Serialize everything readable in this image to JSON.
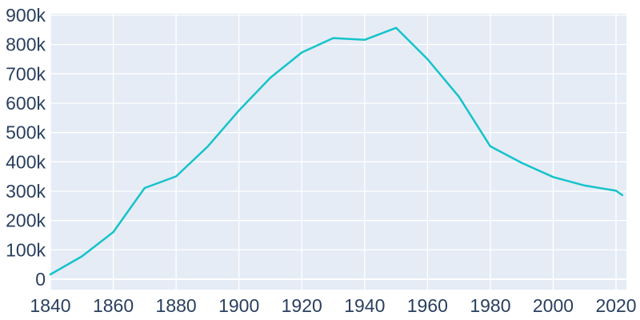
{
  "page": {
    "background_color": "#ffffff"
  },
  "chart_data": {
    "type": "line",
    "title": "",
    "xlabel": "",
    "ylabel": "",
    "legend": "none",
    "grid": true,
    "plot_bg_color": "#e5ecf6",
    "grid_color": "#ffffff",
    "tick_label_color": "#2a3f5f",
    "xlim": [
      1840,
      2023.3
    ],
    "ylim": [
      -35400,
      905400
    ],
    "x_ticks": {
      "values": [
        1840,
        1860,
        1880,
        1900,
        1920,
        1940,
        1960,
        1980,
        2000,
        2020
      ],
      "labels": [
        "1840",
        "1860",
        "1880",
        "1900",
        "1920",
        "1940",
        "1960",
        "1980",
        "2000",
        "2020"
      ]
    },
    "y_ticks": {
      "values": [
        0,
        100000,
        200000,
        300000,
        400000,
        500000,
        600000,
        700000,
        800000,
        900000
      ],
      "labels": [
        "0",
        "100k",
        "200k",
        "300k",
        "400k",
        "500k",
        "600k",
        "700k",
        "800k",
        "900k"
      ]
    },
    "series": [
      {
        "name": "Population",
        "color": "#15c3cb",
        "line_width": 2.5,
        "x": [
          1840,
          1850,
          1860,
          1870,
          1880,
          1890,
          1900,
          1910,
          1920,
          1930,
          1940,
          1950,
          1960,
          1970,
          1980,
          1990,
          2000,
          2010,
          2020,
          2022
        ],
        "values": [
          16469,
          77860,
          160773,
          310864,
          350518,
          451770,
          575238,
          687029,
          772897,
          821960,
          816048,
          856796,
          750026,
          622236,
          453085,
          396685,
          348189,
          319294,
          301578,
          286578
        ]
      }
    ]
  }
}
